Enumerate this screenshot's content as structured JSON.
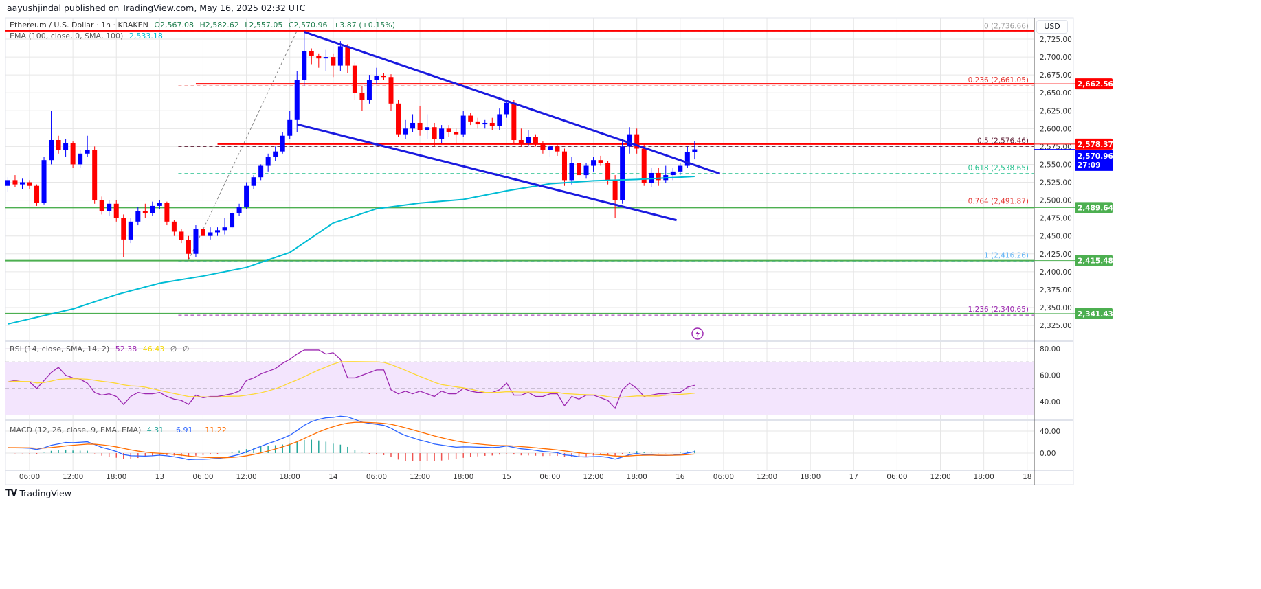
{
  "published": "aayushjindal published on TradingView.com, May 16, 2025 02:32 UTC",
  "legend": {
    "symbol": "Ethereum / U.S. Dollar · 1h · KRAKEN",
    "open": "O2,567.08",
    "high": "H2,582.62",
    "low": "L2,557.05",
    "close": "C2,570.96",
    "change": "+3.87 (+0.15%)",
    "ema_label": "EMA (100, close, 0, SMA, 100)",
    "ema_value": "2,533.18",
    "rsi_label": "RSI (14, close, SMA, 14, 2)",
    "rsi_value": "52.38",
    "rsi_sma_value": "46.43",
    "rsi_extra1": "∅",
    "rsi_extra2": "∅",
    "macd_label": "MACD (12, 26, close, 9, EMA, EMA)",
    "macd_hist": "4.31",
    "macd_value": "−6.91",
    "macd_signal": "−11.22"
  },
  "currency": "USD",
  "brand": "TradingView",
  "colors": {
    "up": "#0000ff",
    "down": "#ff0000",
    "ema": "#00bcd4",
    "trendline": "#1a1adf",
    "support": "#4caf50",
    "resistance": "#ff0000",
    "rsi": "#9c27b0",
    "rsi_sma": "#fdd835",
    "macd": "#2962ff",
    "signal": "#ff6d00"
  },
  "chart_data": {
    "type": "candlestick",
    "interval": "1h",
    "first_candle": "May 12 03:00",
    "ylim": [
      2300,
      2750
    ],
    "price_ticks": [
      "2,725.00",
      "2,700.00",
      "2,675.00",
      "2,650.00",
      "2,625.00",
      "2,600.00",
      "2,575.00",
      "2,550.00",
      "2,525.00",
      "2,500.00",
      "2,475.00",
      "2,450.00",
      "2,425.00",
      "2,400.00",
      "2,375.00",
      "2,350.00",
      "2,325.00"
    ],
    "time_ticks": [
      "06:00",
      "12:00",
      "18:00",
      "13",
      "06:00",
      "12:00",
      "18:00",
      "14",
      "06:00",
      "12:00",
      "18:00",
      "15",
      "06:00",
      "12:00",
      "18:00",
      "16",
      "06:00",
      "12:00",
      "18:00",
      "17",
      "06:00",
      "12:00",
      "18:00",
      "18"
    ],
    "candles": [
      [
        2520,
        2532,
        2512,
        2528
      ],
      [
        2528,
        2535,
        2518,
        2522
      ],
      [
        2522,
        2530,
        2515,
        2525
      ],
      [
        2525,
        2528,
        2515,
        2520
      ],
      [
        2520,
        2522,
        2492,
        2496
      ],
      [
        2496,
        2560,
        2494,
        2556
      ],
      [
        2556,
        2625,
        2550,
        2584
      ],
      [
        2584,
        2590,
        2565,
        2570
      ],
      [
        2570,
        2585,
        2560,
        2580
      ],
      [
        2580,
        2582,
        2545,
        2550
      ],
      [
        2550,
        2570,
        2545,
        2565
      ],
      [
        2565,
        2590,
        2560,
        2570
      ],
      [
        2570,
        2575,
        2495,
        2500
      ],
      [
        2500,
        2505,
        2480,
        2485
      ],
      [
        2485,
        2500,
        2478,
        2495
      ],
      [
        2495,
        2500,
        2470,
        2475
      ],
      [
        2475,
        2480,
        2420,
        2445
      ],
      [
        2445,
        2475,
        2440,
        2470
      ],
      [
        2470,
        2490,
        2465,
        2485
      ],
      [
        2485,
        2495,
        2475,
        2482
      ],
      [
        2482,
        2498,
        2478,
        2492
      ],
      [
        2492,
        2500,
        2488,
        2496
      ],
      [
        2496,
        2498,
        2465,
        2470
      ],
      [
        2470,
        2472,
        2450,
        2456
      ],
      [
        2456,
        2460,
        2440,
        2444
      ],
      [
        2444,
        2450,
        2418,
        2425
      ],
      [
        2425,
        2465,
        2420,
        2460
      ],
      [
        2460,
        2465,
        2445,
        2450
      ],
      [
        2450,
        2462,
        2445,
        2455
      ],
      [
        2455,
        2462,
        2450,
        2458
      ],
      [
        2458,
        2475,
        2452,
        2462
      ],
      [
        2462,
        2485,
        2460,
        2482
      ],
      [
        2482,
        2495,
        2478,
        2490
      ],
      [
        2490,
        2525,
        2488,
        2520
      ],
      [
        2520,
        2535,
        2515,
        2532
      ],
      [
        2532,
        2550,
        2528,
        2548
      ],
      [
        2548,
        2565,
        2540,
        2560
      ],
      [
        2560,
        2575,
        2555,
        2568
      ],
      [
        2568,
        2595,
        2565,
        2590
      ],
      [
        2590,
        2625,
        2585,
        2612
      ],
      [
        2612,
        2680,
        2595,
        2668
      ],
      [
        2668,
        2737,
        2660,
        2708
      ],
      [
        2708,
        2712,
        2690,
        2702
      ],
      [
        2702,
        2705,
        2685,
        2698
      ],
      [
        2698,
        2710,
        2680,
        2700
      ],
      [
        2700,
        2705,
        2672,
        2688
      ],
      [
        2688,
        2722,
        2680,
        2715
      ],
      [
        2715,
        2718,
        2678,
        2688
      ],
      [
        2688,
        2692,
        2640,
        2650
      ],
      [
        2650,
        2660,
        2625,
        2640
      ],
      [
        2640,
        2675,
        2635,
        2668
      ],
      [
        2668,
        2685,
        2662,
        2674
      ],
      [
        2674,
        2678,
        2668,
        2672
      ],
      [
        2672,
        2676,
        2625,
        2635
      ],
      [
        2635,
        2640,
        2588,
        2592
      ],
      [
        2592,
        2612,
        2585,
        2600
      ],
      [
        2600,
        2620,
        2595,
        2608
      ],
      [
        2608,
        2632,
        2590,
        2598
      ],
      [
        2598,
        2620,
        2585,
        2602
      ],
      [
        2602,
        2608,
        2575,
        2585
      ],
      [
        2585,
        2605,
        2580,
        2600
      ],
      [
        2600,
        2605,
        2588,
        2595
      ],
      [
        2595,
        2600,
        2578,
        2592
      ],
      [
        2592,
        2625,
        2588,
        2618
      ],
      [
        2618,
        2622,
        2605,
        2610
      ],
      [
        2610,
        2615,
        2600,
        2606
      ],
      [
        2606,
        2612,
        2600,
        2608
      ],
      [
        2608,
        2615,
        2598,
        2604
      ],
      [
        2604,
        2628,
        2598,
        2620
      ],
      [
        2620,
        2640,
        2615,
        2636
      ],
      [
        2636,
        2640,
        2578,
        2584
      ],
      [
        2584,
        2600,
        2575,
        2580
      ],
      [
        2580,
        2598,
        2575,
        2588
      ],
      [
        2588,
        2592,
        2575,
        2578
      ],
      [
        2578,
        2582,
        2565,
        2570
      ],
      [
        2570,
        2580,
        2560,
        2575
      ],
      [
        2575,
        2578,
        2562,
        2568
      ],
      [
        2568,
        2572,
        2520,
        2528
      ],
      [
        2528,
        2560,
        2522,
        2552
      ],
      [
        2552,
        2556,
        2528,
        2535
      ],
      [
        2535,
        2552,
        2530,
        2548
      ],
      [
        2548,
        2560,
        2540,
        2556
      ],
      [
        2556,
        2562,
        2548,
        2552
      ],
      [
        2552,
        2555,
        2522,
        2528
      ],
      [
        2528,
        2535,
        2475,
        2500
      ],
      [
        2500,
        2585,
        2495,
        2575
      ],
      [
        2575,
        2602,
        2565,
        2592
      ],
      [
        2592,
        2600,
        2565,
        2572
      ],
      [
        2572,
        2578,
        2520,
        2524
      ],
      [
        2524,
        2545,
        2518,
        2538
      ],
      [
        2538,
        2545,
        2520,
        2528
      ],
      [
        2528,
        2548,
        2524,
        2535
      ],
      [
        2535,
        2545,
        2528,
        2540
      ],
      [
        2540,
        2552,
        2535,
        2548
      ],
      [
        2548,
        2575,
        2545,
        2567
      ],
      [
        2567.08,
        2582.62,
        2557.05,
        2570.96
      ]
    ],
    "ema100": [
      [
        "May 12 03:00",
        2327
      ],
      [
        "May 12 12:00",
        2348
      ],
      [
        "May 12 18:00",
        2368
      ],
      [
        "May 13 00:00",
        2384
      ],
      [
        "May 13 06:00",
        2394
      ],
      [
        "May 13 12:00",
        2406
      ],
      [
        "May 13 18:00",
        2427
      ],
      [
        "May 14 00:00",
        2468
      ],
      [
        "May 14 06:00",
        2488
      ],
      [
        "May 14 12:00",
        2496
      ],
      [
        "May 14 18:00",
        2501
      ],
      [
        "May 15 00:00",
        2513
      ],
      [
        "May 15 06:00",
        2523
      ],
      [
        "May 15 12:00",
        2527
      ],
      [
        "May 15 18:00",
        2529
      ],
      [
        "May 16 02:00",
        2533.18
      ]
    ],
    "trendlines": [
      {
        "from": [
          "May 13 20:00",
          2735
        ],
        "to": [
          "May 16 05:30",
          2537
        ]
      },
      {
        "from": [
          "May 13 19:00",
          2606
        ],
        "to": [
          "May 15 23:30",
          2472
        ]
      }
    ],
    "fib_anchor": {
      "from": [
        "May 13 04:00",
        2416.26
      ],
      "to": [
        "May 13 19:00",
        2736.66
      ]
    },
    "fib_levels": [
      {
        "label": "0 (2,736.66)",
        "value": 2736.66,
        "color": "#9e9e9e"
      },
      {
        "label": "0.236 (2,661.05)",
        "value": 2661.05,
        "color": "#e53935"
      },
      {
        "label": "0.5 (2,576.46)",
        "value": 2576.46,
        "color": "#5d1f35"
      },
      {
        "label": "0.618 (2,538.65)",
        "value": 2538.65,
        "color": "#26c08e"
      },
      {
        "label": "0.764 (2,491.87)",
        "value": 2491.87,
        "color": "#e53935"
      },
      {
        "label": "1 (2,416.26)",
        "value": 2416.26,
        "color": "#64b5f6"
      },
      {
        "label": "1.236 (2,340.65)",
        "value": 2340.65,
        "color": "#9c27b0"
      }
    ],
    "horizontal_lines": [
      {
        "value": 2736.66,
        "color": "#ff0000",
        "from": "start"
      },
      {
        "value": 2662.56,
        "color": "#ff0000",
        "badge": "2,662.56",
        "from": "May 13 05:00"
      },
      {
        "value": 2578.37,
        "color": "#ff0000",
        "badge": "2,578.37",
        "from": "May 13 08:00"
      },
      {
        "value": 2489.64,
        "color": "#4caf50",
        "badge": "2,489.64",
        "from": "start"
      },
      {
        "value": 2415.48,
        "color": "#4caf50",
        "badge": "2,415.48",
        "from": "start"
      },
      {
        "value": 2341.43,
        "color": "#4caf50",
        "badge": "2,341.43",
        "from": "start"
      }
    ],
    "last_price": {
      "value": 2570.96,
      "label": "2,570.96",
      "countdown": "27:09"
    },
    "rsi": {
      "values": [
        55,
        56,
        55,
        55,
        50,
        56,
        62,
        66,
        60,
        58,
        57,
        54,
        47,
        45,
        46,
        44,
        38,
        44,
        47,
        46,
        46,
        47,
        44,
        42,
        41,
        38,
        45,
        43,
        44,
        44,
        45,
        46,
        48,
        56,
        58,
        61,
        63,
        65,
        69,
        72,
        76,
        79,
        79,
        79,
        76,
        77,
        72,
        58,
        58,
        60,
        62,
        64,
        64,
        49,
        46,
        48,
        46,
        48,
        46,
        44,
        48,
        46,
        46,
        50,
        48,
        47,
        47,
        47,
        49,
        54,
        45,
        45,
        47,
        44,
        44,
        46,
        46,
        37,
        44,
        42,
        45,
        45,
        43,
        41,
        35,
        49,
        54,
        50,
        44,
        45,
        46,
        46,
        47,
        47,
        51,
        52.38
      ],
      "sma_period": 14,
      "band": [
        30,
        70
      ],
      "ticks": [
        "80.00",
        "60.00",
        "40.00"
      ]
    },
    "macd": {
      "fast": 12,
      "slow": 26,
      "signal": 9,
      "ticks": [
        "40.00",
        "0.00"
      ]
    }
  }
}
